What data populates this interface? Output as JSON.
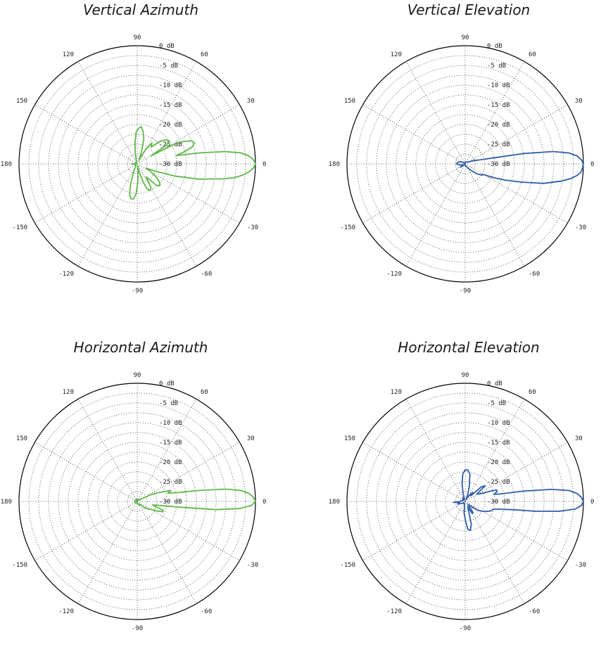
{
  "chart_data": [
    {
      "type": "polar",
      "title": "Vertical Azimuth",
      "color": "#5cb848",
      "r_unit": "dB",
      "r_range": [
        -30,
        0
      ],
      "r_ticks": [
        "0 dB",
        "-5 dB",
        "-10 dB",
        "-15 dB",
        "-20 dB",
        "-25 dB",
        "-30 dB"
      ],
      "angle_ticks": [
        "0",
        "30",
        "60",
        "90",
        "120",
        "150",
        "180",
        "-150",
        "-120",
        "-90",
        "-60",
        "-30"
      ],
      "grid": true,
      "series": [
        {
          "angles": [
            0,
            2,
            4,
            6,
            8,
            10,
            12,
            14,
            17,
            20,
            23,
            26,
            28,
            30,
            33,
            36,
            40,
            45,
            50,
            55,
            60,
            65,
            70,
            75,
            80,
            84,
            88,
            92,
            96,
            100,
            104,
            108,
            112,
            116,
            120,
            130,
            140,
            150,
            160,
            170,
            180,
            190,
            200,
            210,
            220,
            230,
            240,
            244,
            248,
            252,
            256,
            260,
            264,
            268,
            272,
            276,
            280,
            284,
            288,
            292,
            296,
            300,
            304,
            308,
            312,
            316,
            320,
            325,
            330,
            334,
            338,
            342,
            346,
            350,
            352,
            354,
            356,
            358,
            360
          ],
          "values": [
            0,
            -0.5,
            -1.5,
            -3.5,
            -7.5,
            -14,
            -20,
            -18,
            -15.5,
            -14.5,
            -15,
            -17,
            -20,
            -26,
            -21,
            -20,
            -20.5,
            -22,
            -24.5,
            -23.5,
            -26,
            -29,
            -27,
            -23.5,
            -21.5,
            -20.5,
            -21,
            -22,
            -24.5,
            -27,
            -29,
            -29.5,
            -29.2,
            -29.5,
            -29.5,
            -29.5,
            -29.8,
            -29.8,
            -30,
            -29.8,
            -28.5,
            -29.5,
            -29.5,
            -29.5,
            -29.5,
            -29.5,
            -29,
            -28.5,
            -27,
            -24.5,
            -22,
            -21,
            -21,
            -22.5,
            -25.5,
            -28,
            -29.5,
            -28,
            -25,
            -23,
            -22.5,
            -23,
            -26,
            -25,
            -22.5,
            -22,
            -22.5,
            -24,
            -26,
            -27.5,
            -25,
            -20,
            -14,
            -8,
            -5,
            -3,
            -1.5,
            -0.5,
            0
          ]
        }
      ]
    },
    {
      "type": "polar",
      "title": "Vertical Elevation",
      "color": "#2f5cab",
      "r_unit": "dB",
      "r_range": [
        -30,
        0
      ],
      "r_ticks": [
        "0 dB",
        "-5 dB",
        "-10 dB",
        "-15 dB",
        "-20 dB",
        "-25 dB",
        "-30 dB"
      ],
      "angle_ticks": [
        "0",
        "30",
        "60",
        "90",
        "120",
        "150",
        "180",
        "-150",
        "-120",
        "-90",
        "-60",
        "-30"
      ],
      "grid": true,
      "series": [
        {
          "angles": [
            0,
            2,
            4,
            6,
            8,
            10,
            12,
            14,
            16,
            20,
            25,
            30,
            40,
            50,
            60,
            70,
            80,
            90,
            100,
            110,
            120,
            130,
            140,
            150,
            160,
            170,
            180,
            190,
            200,
            210,
            215,
            220,
            230,
            240,
            250,
            260,
            270,
            280,
            290,
            300,
            310,
            320,
            326,
            330,
            334,
            338,
            342,
            346,
            350,
            352,
            354,
            356,
            358,
            360
          ],
          "values": [
            0,
            -0.5,
            -1.5,
            -3.5,
            -7.5,
            -15,
            -23,
            -25.5,
            -26.5,
            -27.5,
            -28.5,
            -29,
            -29.3,
            -29.4,
            -29.5,
            -29.5,
            -29.5,
            -29.7,
            -29.7,
            -29.8,
            -29.8,
            -29.8,
            -29.7,
            -29,
            -28.5,
            -28,
            -27.8,
            -28.5,
            -29.2,
            -29.5,
            -28.5,
            -29.5,
            -29.8,
            -29.8,
            -29.8,
            -29.8,
            -29.8,
            -29.5,
            -29.4,
            -29,
            -28,
            -26,
            -25,
            -24.5,
            -22,
            -19,
            -15,
            -9.5,
            -5,
            -3,
            -1.5,
            -0.5,
            -0.2,
            0
          ]
        }
      ]
    },
    {
      "type": "polar",
      "title": "Horizontal Azimuth",
      "color": "#5cb848",
      "r_unit": "dB",
      "r_range": [
        -30,
        0
      ],
      "r_ticks": [
        "0 dB",
        "-5 dB",
        "-10 dB",
        "-15 dB",
        "-20 dB",
        "-25 dB",
        "-30 dB"
      ],
      "angle_ticks": [
        "0",
        "30",
        "60",
        "90",
        "120",
        "150",
        "180",
        "-150",
        "-120",
        "-90",
        "-60",
        "-30"
      ],
      "grid": true,
      "series": [
        {
          "angles": [
            0,
            2,
            4,
            6,
            8,
            10,
            12,
            15,
            18,
            22,
            26,
            30,
            35,
            40,
            50,
            60,
            70,
            80,
            90,
            100,
            110,
            120,
            130,
            140,
            150,
            160,
            170,
            180,
            190,
            200,
            210,
            220,
            230,
            240,
            250,
            260,
            270,
            280,
            290,
            300,
            310,
            320,
            325,
            330,
            334,
            338,
            341,
            344,
            347,
            350,
            352,
            354,
            356,
            358,
            360
          ],
          "values": [
            0,
            -0.5,
            -1.5,
            -3.5,
            -7.5,
            -14,
            -19,
            -22,
            -21,
            -24,
            -26,
            -28.5,
            -29.2,
            -29.5,
            -29.5,
            -29.7,
            -29.6,
            -29.5,
            -29.5,
            -29.4,
            -29.5,
            -29.5,
            -29.6,
            -29.6,
            -29.5,
            -29.5,
            -29.5,
            -29.4,
            -29.3,
            -29.4,
            -29.5,
            -29.5,
            -29.6,
            -29.7,
            -29.6,
            -29.7,
            -29.8,
            -29.5,
            -29.3,
            -28.8,
            -29,
            -27.5,
            -26.5,
            -26,
            -24.5,
            -23,
            -23,
            -25,
            -26,
            -24,
            -20,
            -10,
            -4,
            -1,
            0
          ]
        }
      ]
    },
    {
      "type": "polar",
      "title": "Horizontal Elevation",
      "color": "#2f5cab",
      "r_unit": "dB",
      "r_range": [
        -30,
        0
      ],
      "r_ticks": [
        "0 dB",
        "-5 dB",
        "-10 dB",
        "-15 dB",
        "-20 dB",
        "-25 dB",
        "-30 dB"
      ],
      "angle_ticks": [
        "0",
        "30",
        "60",
        "90",
        "120",
        "150",
        "180",
        "-150",
        "-120",
        "-90",
        "-60",
        "-30"
      ],
      "grid": true,
      "series": [
        {
          "angles": [
            0,
            2,
            4,
            6,
            8,
            10,
            12,
            14,
            17,
            20,
            22,
            25,
            28,
            32,
            35,
            38,
            42,
            45,
            50,
            55,
            60,
            65,
            70,
            75,
            80,
            85,
            90,
            95,
            100,
            105,
            110,
            115,
            120,
            130,
            140,
            150,
            160,
            170,
            180,
            185,
            190,
            200,
            210,
            220,
            230,
            240,
            250,
            260,
            265,
            270,
            275,
            280,
            285,
            290,
            295,
            300,
            305,
            310,
            315,
            320,
            325,
            330,
            335,
            340,
            345,
            350,
            352,
            354,
            356,
            358,
            360
          ],
          "values": [
            0,
            -0.5,
            -1.5,
            -3.5,
            -8,
            -15,
            -21,
            -22.5,
            -21.5,
            -21.5,
            -23,
            -25,
            -26,
            -26.5,
            -25.5,
            -23.5,
            -24.5,
            -28,
            -27,
            -28,
            -29,
            -29.5,
            -28,
            -26,
            -23,
            -22,
            -22,
            -23,
            -25.5,
            -28,
            -29.5,
            -29.5,
            -29,
            -29,
            -29.5,
            -29.5,
            -29.5,
            -29,
            -28.8,
            -27,
            -28.5,
            -28,
            -29,
            -29.5,
            -29.5,
            -29.3,
            -29.5,
            -29,
            -27,
            -25.5,
            -23,
            -22.5,
            -24,
            -27.5,
            -28.5,
            -26.5,
            -26.5,
            -28.5,
            -29,
            -28,
            -26,
            -25,
            -24,
            -23,
            -22.5,
            -18,
            -12,
            -6,
            -2,
            -0.5,
            0
          ]
        }
      ]
    }
  ]
}
